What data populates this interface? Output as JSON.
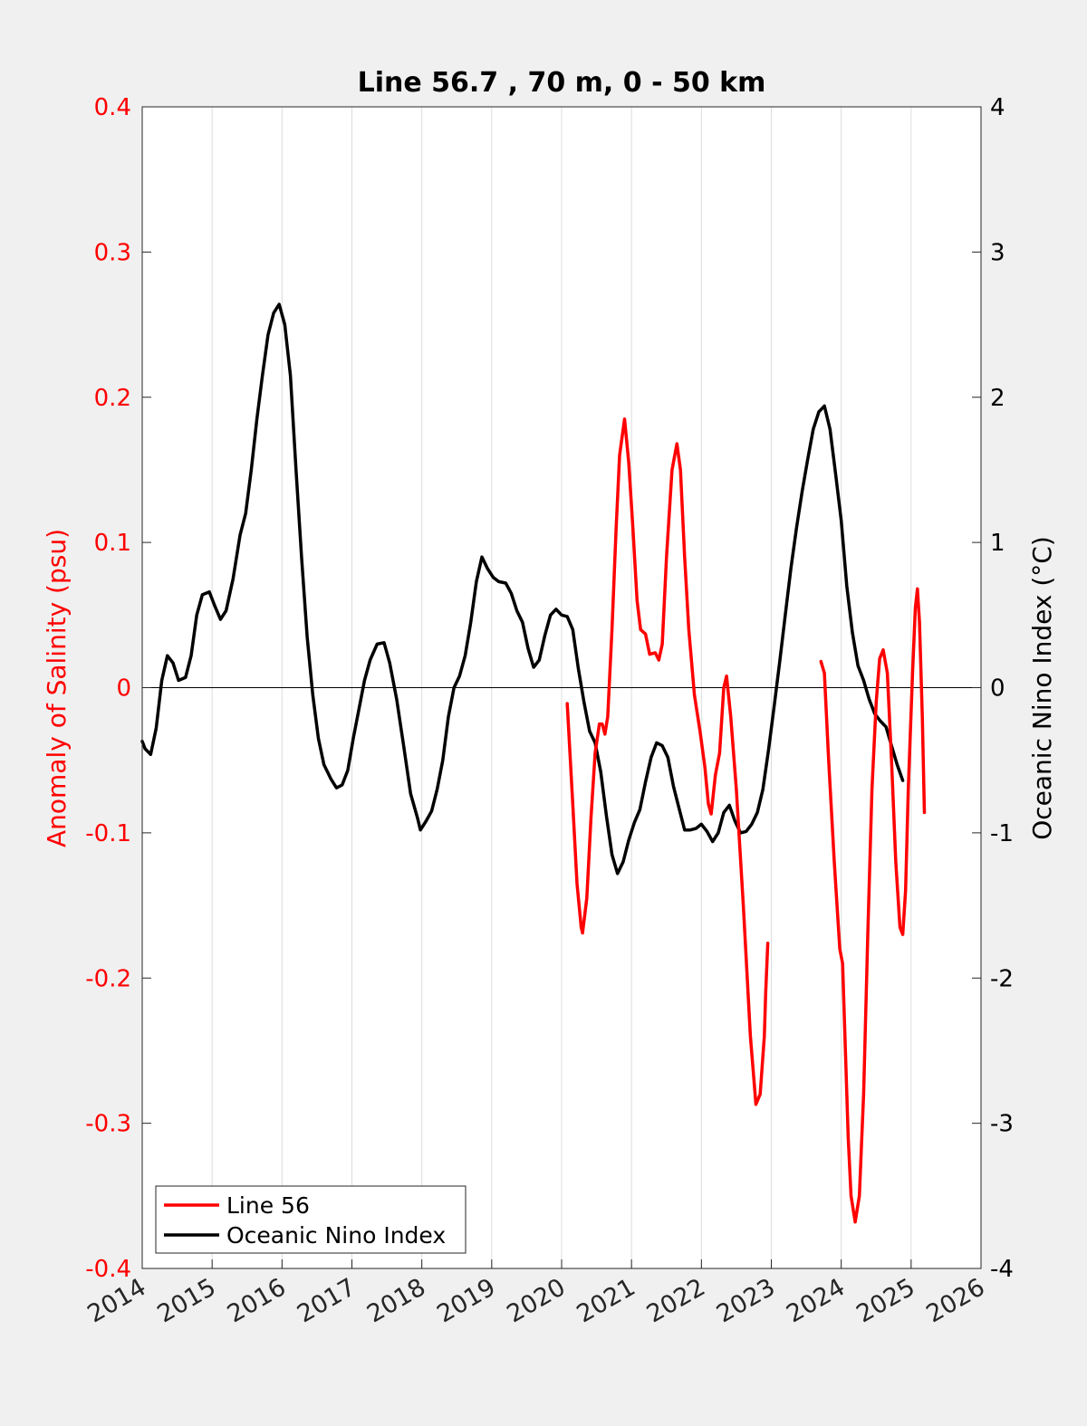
{
  "chart_data": {
    "type": "line",
    "title": "Line 56.7 , 70 m, 0 - 50 km",
    "xlabel": "",
    "ylabel_left": "Anomaly of Salinity (psu)",
    "ylabel_right": "Oceanic Nino Index (°C)",
    "xlim": [
      2014,
      2026
    ],
    "ylim_left": [
      -0.4,
      0.4
    ],
    "ylim_right": [
      -4,
      4
    ],
    "x_ticks": [
      2014,
      2015,
      2016,
      2017,
      2018,
      2019,
      2020,
      2021,
      2022,
      2023,
      2024,
      2025,
      2026
    ],
    "x_tick_labels": [
      "2014",
      "2015",
      "2016",
      "2017",
      "2018",
      "2019",
      "2020",
      "2021",
      "2022",
      "2023",
      "2024",
      "2025",
      "2026"
    ],
    "y_left_ticks": [
      -0.4,
      -0.3,
      -0.2,
      -0.1,
      0,
      0.1,
      0.2,
      0.3,
      0.4
    ],
    "y_left_tick_labels": [
      "-0.4",
      "-0.3",
      "-0.2",
      "-0.1",
      "0",
      "0.1",
      "0.2",
      "0.3",
      "0.4"
    ],
    "y_right_ticks": [
      -4,
      -3,
      -2,
      -1,
      0,
      1,
      2,
      3,
      4
    ],
    "y_right_tick_labels": [
      "-4",
      "-3",
      "-2",
      "-1",
      "0",
      "1",
      "2",
      "3",
      "4"
    ],
    "grid": "vertical",
    "zero_line": true,
    "legend_position": "bottom-left",
    "colors": {
      "salinity": "#ff0000",
      "oni": "#000000",
      "left_axis": "#ff0000",
      "right_axis": "#000000",
      "grid": "#dcdcdc",
      "background": "#f0f0f0",
      "plot_background": "#ffffff"
    },
    "series": [
      {
        "name": "Line 56",
        "axis": "left",
        "color": "#ff0000",
        "segments": [
          [
            [
              2020.08,
              -0.011
            ],
            [
              2020.16,
              -0.08
            ],
            [
              2020.22,
              -0.135
            ],
            [
              2020.28,
              -0.165
            ],
            [
              2020.3,
              -0.169
            ],
            [
              2020.36,
              -0.145
            ],
            [
              2020.42,
              -0.09
            ],
            [
              2020.48,
              -0.045
            ],
            [
              2020.54,
              -0.025
            ],
            [
              2020.58,
              -0.025
            ],
            [
              2020.62,
              -0.032
            ],
            [
              2020.66,
              -0.02
            ],
            [
              2020.72,
              0.04
            ],
            [
              2020.78,
              0.11
            ],
            [
              2020.83,
              0.16
            ],
            [
              2020.9,
              0.185
            ],
            [
              2020.96,
              0.155
            ],
            [
              2021.02,
              0.11
            ],
            [
              2021.08,
              0.06
            ],
            [
              2021.13,
              0.04
            ],
            [
              2021.2,
              0.037
            ],
            [
              2021.26,
              0.023
            ],
            [
              2021.34,
              0.024
            ],
            [
              2021.39,
              0.019
            ],
            [
              2021.44,
              0.03
            ],
            [
              2021.5,
              0.09
            ],
            [
              2021.58,
              0.15
            ],
            [
              2021.65,
              0.168
            ],
            [
              2021.7,
              0.15
            ],
            [
              2021.76,
              0.09
            ],
            [
              2021.82,
              0.04
            ],
            [
              2021.9,
              -0.005
            ],
            [
              2021.98,
              -0.03
            ],
            [
              2022.05,
              -0.055
            ],
            [
              2022.1,
              -0.08
            ],
            [
              2022.14,
              -0.087
            ],
            [
              2022.2,
              -0.06
            ],
            [
              2022.26,
              -0.045
            ],
            [
              2022.32,
              0.0
            ],
            [
              2022.36,
              0.008
            ],
            [
              2022.42,
              -0.02
            ],
            [
              2022.5,
              -0.07
            ],
            [
              2022.6,
              -0.15
            ],
            [
              2022.7,
              -0.24
            ],
            [
              2022.78,
              -0.287
            ],
            [
              2022.84,
              -0.28
            ],
            [
              2022.9,
              -0.24
            ],
            [
              2022.92,
              -0.21
            ],
            [
              2022.95,
              -0.176
            ]
          ],
          [
            [
              2023.71,
              0.018
            ],
            [
              2023.76,
              0.01
            ],
            [
              2023.82,
              -0.05
            ],
            [
              2023.9,
              -0.12
            ],
            [
              2023.98,
              -0.18
            ],
            [
              2024.02,
              -0.19
            ],
            [
              2024.06,
              -0.25
            ],
            [
              2024.1,
              -0.31
            ],
            [
              2024.14,
              -0.35
            ],
            [
              2024.2,
              -0.368
            ],
            [
              2024.26,
              -0.35
            ],
            [
              2024.32,
              -0.28
            ],
            [
              2024.38,
              -0.17
            ],
            [
              2024.44,
              -0.07
            ],
            [
              2024.5,
              -0.01
            ],
            [
              2024.55,
              0.02
            ],
            [
              2024.6,
              0.026
            ],
            [
              2024.66,
              0.01
            ],
            [
              2024.72,
              -0.05
            ],
            [
              2024.78,
              -0.12
            ],
            [
              2024.84,
              -0.165
            ],
            [
              2024.88,
              -0.17
            ],
            [
              2024.92,
              -0.14
            ],
            [
              2024.96,
              -0.07
            ],
            [
              2025.02,
              0.01
            ],
            [
              2025.06,
              0.055
            ],
            [
              2025.09,
              0.068
            ],
            [
              2025.12,
              0.045
            ],
            [
              2025.16,
              -0.02
            ],
            [
              2025.19,
              -0.086
            ]
          ]
        ]
      },
      {
        "name": "Oceanic Nino Index",
        "axis": "right",
        "color": "#000000",
        "segments": [
          [
            [
              2014.0,
              -0.37
            ],
            [
              2014.04,
              -0.42
            ],
            [
              2014.12,
              -0.46
            ],
            [
              2014.2,
              -0.28
            ],
            [
              2014.28,
              0.05
            ],
            [
              2014.36,
              0.22
            ],
            [
              2014.44,
              0.17
            ],
            [
              2014.52,
              0.05
            ],
            [
              2014.62,
              0.07
            ],
            [
              2014.7,
              0.22
            ],
            [
              2014.78,
              0.5
            ],
            [
              2014.86,
              0.64
            ],
            [
              2014.96,
              0.66
            ],
            [
              2015.04,
              0.56
            ],
            [
              2015.12,
              0.47
            ],
            [
              2015.2,
              0.53
            ],
            [
              2015.3,
              0.75
            ],
            [
              2015.4,
              1.05
            ],
            [
              2015.48,
              1.2
            ],
            [
              2015.56,
              1.5
            ],
            [
              2015.64,
              1.85
            ],
            [
              2015.72,
              2.15
            ],
            [
              2015.8,
              2.43
            ],
            [
              2015.88,
              2.58
            ],
            [
              2015.96,
              2.64
            ],
            [
              2016.04,
              2.5
            ],
            [
              2016.12,
              2.15
            ],
            [
              2016.2,
              1.5
            ],
            [
              2016.28,
              0.9
            ],
            [
              2016.36,
              0.35
            ],
            [
              2016.44,
              -0.05
            ],
            [
              2016.52,
              -0.35
            ],
            [
              2016.6,
              -0.53
            ],
            [
              2016.7,
              -0.63
            ],
            [
              2016.78,
              -0.69
            ],
            [
              2016.86,
              -0.67
            ],
            [
              2016.94,
              -0.57
            ],
            [
              2017.02,
              -0.35
            ],
            [
              2017.1,
              -0.15
            ],
            [
              2017.18,
              0.05
            ],
            [
              2017.26,
              0.19
            ],
            [
              2017.36,
              0.3
            ],
            [
              2017.46,
              0.31
            ],
            [
              2017.54,
              0.17
            ],
            [
              2017.64,
              -0.08
            ],
            [
              2017.74,
              -0.4
            ],
            [
              2017.84,
              -0.73
            ],
            [
              2017.94,
              -0.9
            ],
            [
              2017.98,
              -0.98
            ],
            [
              2018.06,
              -0.92
            ],
            [
              2018.14,
              -0.85
            ],
            [
              2018.22,
              -0.7
            ],
            [
              2018.3,
              -0.5
            ],
            [
              2018.38,
              -0.2
            ],
            [
              2018.46,
              0.0
            ],
            [
              2018.54,
              0.08
            ],
            [
              2018.62,
              0.22
            ],
            [
              2018.7,
              0.45
            ],
            [
              2018.78,
              0.73
            ],
            [
              2018.86,
              0.9
            ],
            [
              2018.94,
              0.82
            ],
            [
              2019.02,
              0.76
            ],
            [
              2019.1,
              0.73
            ],
            [
              2019.2,
              0.72
            ],
            [
              2019.28,
              0.65
            ],
            [
              2019.36,
              0.53
            ],
            [
              2019.44,
              0.45
            ],
            [
              2019.52,
              0.27
            ],
            [
              2019.6,
              0.14
            ],
            [
              2019.68,
              0.19
            ],
            [
              2019.76,
              0.36
            ],
            [
              2019.84,
              0.5
            ],
            [
              2019.92,
              0.54
            ],
            [
              2020.0,
              0.5
            ],
            [
              2020.08,
              0.49
            ],
            [
              2020.16,
              0.4
            ],
            [
              2020.24,
              0.13
            ],
            [
              2020.32,
              -0.1
            ],
            [
              2020.4,
              -0.3
            ],
            [
              2020.48,
              -0.38
            ],
            [
              2020.56,
              -0.58
            ],
            [
              2020.64,
              -0.88
            ],
            [
              2020.72,
              -1.15
            ],
            [
              2020.8,
              -1.28
            ],
            [
              2020.88,
              -1.2
            ],
            [
              2020.96,
              -1.05
            ],
            [
              2021.04,
              -0.93
            ],
            [
              2021.12,
              -0.84
            ],
            [
              2021.2,
              -0.65
            ],
            [
              2021.28,
              -0.48
            ],
            [
              2021.36,
              -0.38
            ],
            [
              2021.44,
              -0.4
            ],
            [
              2021.52,
              -0.48
            ],
            [
              2021.6,
              -0.68
            ],
            [
              2021.68,
              -0.83
            ],
            [
              2021.76,
              -0.98
            ],
            [
              2021.84,
              -0.98
            ],
            [
              2021.92,
              -0.97
            ],
            [
              2022.0,
              -0.94
            ],
            [
              2022.08,
              -0.99
            ],
            [
              2022.16,
              -1.06
            ],
            [
              2022.24,
              -1.0
            ],
            [
              2022.32,
              -0.86
            ],
            [
              2022.4,
              -0.81
            ],
            [
              2022.48,
              -0.92
            ],
            [
              2022.56,
              -1.0
            ],
            [
              2022.64,
              -0.99
            ],
            [
              2022.72,
              -0.94
            ],
            [
              2022.8,
              -0.86
            ],
            [
              2022.88,
              -0.7
            ],
            [
              2022.96,
              -0.43
            ],
            [
              2023.04,
              -0.13
            ],
            [
              2023.12,
              0.18
            ],
            [
              2023.2,
              0.5
            ],
            [
              2023.28,
              0.82
            ],
            [
              2023.36,
              1.1
            ],
            [
              2023.44,
              1.35
            ],
            [
              2023.52,
              1.57
            ],
            [
              2023.6,
              1.78
            ],
            [
              2023.68,
              1.9
            ],
            [
              2023.76,
              1.94
            ],
            [
              2023.84,
              1.78
            ],
            [
              2023.92,
              1.47
            ],
            [
              2024.0,
              1.15
            ],
            [
              2024.08,
              0.7
            ],
            [
              2024.16,
              0.38
            ],
            [
              2024.24,
              0.15
            ],
            [
              2024.32,
              0.05
            ],
            [
              2024.4,
              -0.08
            ],
            [
              2024.48,
              -0.18
            ],
            [
              2024.56,
              -0.23
            ],
            [
              2024.64,
              -0.27
            ],
            [
              2024.72,
              -0.4
            ],
            [
              2024.8,
              -0.53
            ],
            [
              2024.88,
              -0.64
            ]
          ]
        ]
      }
    ]
  }
}
